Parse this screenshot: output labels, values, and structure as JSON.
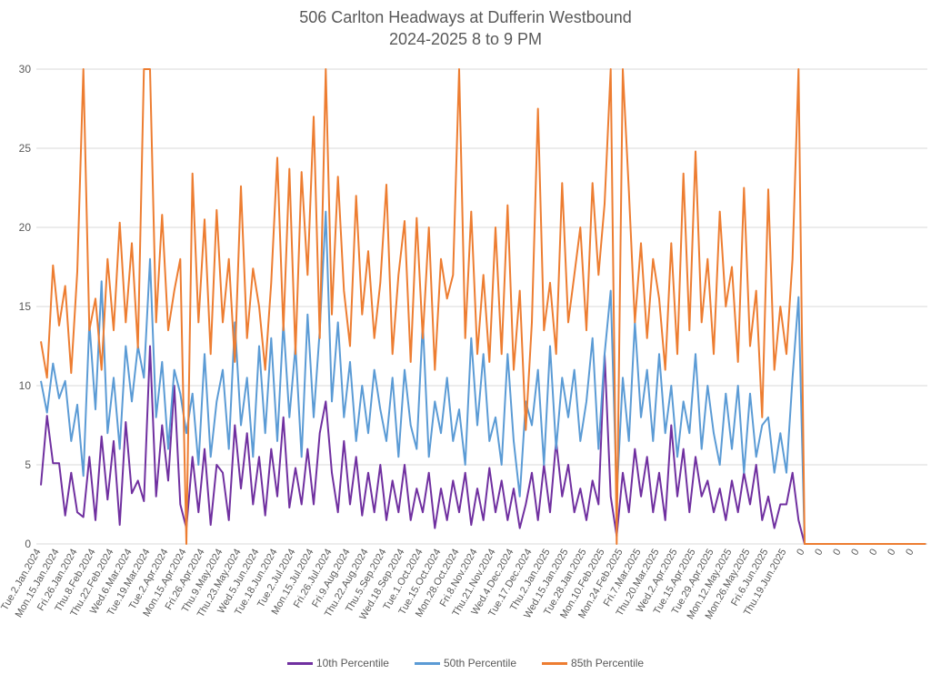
{
  "chart_data": {
    "type": "line",
    "title": "506 Carlton Headways at Dufferin Westbound",
    "subtitle": "2024-2025 8 to 9 PM",
    "xlabel": "",
    "ylabel": "",
    "ylim": [
      0,
      30
    ],
    "yticks": [
      0,
      5,
      10,
      15,
      20,
      25,
      30
    ],
    "grid": true,
    "legend_position": "bottom",
    "x_tick_labels": [
      "Tue.2.Jan.2024",
      "Mon.15.Jan.2024",
      "Fri.26.Jan.2024",
      "Thu.8.Feb.2024",
      "Thu.22.Feb.2024",
      "Wed.6.Mar.2024",
      "Tue.19.Mar.2024",
      "Tue.2.Apr.2024",
      "Mon.15.Apr.2024",
      "Fri.26.Apr.2024",
      "Thu.9.May.2024",
      "Thu.23.May.2024",
      "Wed.5.Jun.2024",
      "Tue.18.Jun.2024",
      "Tue.2.Jul.2024",
      "Mon.15.Jul.2024",
      "Fri.26.Jul.2024",
      "Fri.9.Aug.2024",
      "Thu.22.Aug.2024",
      "Thu.5.Sep.2024",
      "Wed.18.Sep.2024",
      "Tue.1.Oct.2024",
      "Tue.15.Oct.2024",
      "Mon.28.Oct.2024",
      "Fri.8.Nov.2024",
      "Thu.21.Nov.2024",
      "Wed.4.Dec.2024",
      "Tue.17.Dec.2024",
      "Thu.2.Jan.2025",
      "Wed.15.Jan.2025",
      "Tue.28.Jan.2025",
      "Mon.10.Feb.2025",
      "Mon.24.Feb.2025",
      "Fri.7.Mar.2025",
      "Thu.20.Mar.2025",
      "Wed.2.Apr.2025",
      "Tue.15.Apr.2025",
      "Tue.29.Apr.2025",
      "Mon.12.May.2025",
      "Mon.26.May.2025",
      "Fri.6.Jun.2025",
      "Thu.19.Jun.2025",
      "0",
      "0",
      "0",
      "0",
      "0",
      "0",
      "0"
    ],
    "points_per_tick": 3,
    "series": [
      {
        "name": "10th Percentile",
        "color": "#7030A0",
        "values": [
          3.7,
          8.1,
          5.1,
          5.1,
          1.8,
          4.5,
          2.0,
          1.7,
          5.5,
          1.5,
          6.8,
          2.8,
          6.5,
          1.2,
          7.7,
          3.2,
          4.0,
          2.7,
          12.5,
          3.0,
          7.5,
          4.0,
          10.0,
          2.5,
          1.0,
          5.5,
          2.0,
          6.0,
          1.2,
          5.0,
          4.5,
          1.5,
          7.5,
          3.5,
          7.0,
          2.5,
          5.5,
          1.8,
          6.0,
          3.0,
          8.0,
          2.3,
          4.8,
          2.5,
          6.0,
          2.5,
          7.0,
          9.0,
          4.5,
          2.0,
          6.5,
          2.5,
          5.5,
          1.8,
          4.5,
          2.0,
          5.0,
          1.5,
          4.0,
          2.0,
          5.0,
          1.5,
          3.5,
          2.0,
          4.5,
          1.0,
          3.5,
          1.5,
          4.0,
          2.0,
          4.5,
          1.2,
          3.5,
          1.5,
          4.8,
          2.0,
          4.0,
          1.5,
          3.5,
          1.0,
          2.5,
          4.5,
          1.5,
          5.0,
          2.0,
          6.5,
          3.0,
          5.0,
          2.0,
          3.5,
          1.5,
          4.0,
          2.5,
          12.0,
          3.0,
          0.5,
          4.5,
          2.0,
          6.0,
          3.0,
          5.5,
          2.0,
          4.5,
          1.5,
          7.5,
          3.0,
          6.0,
          2.0,
          5.5,
          3.0,
          4.0,
          2.0,
          3.5,
          1.5,
          4.0,
          2.0,
          4.5,
          2.5,
          5.0,
          1.5,
          3.0,
          1.0,
          2.5,
          2.5,
          4.5,
          1.5,
          0,
          0,
          0,
          0,
          0,
          0,
          0,
          0,
          0,
          0,
          0,
          0,
          0,
          0,
          0,
          0,
          0,
          0,
          0,
          0,
          0
        ]
      },
      {
        "name": "50th Percentile",
        "color": "#5B9BD5",
        "values": [
          10.3,
          8.3,
          11.4,
          9.2,
          10.3,
          6.5,
          8.8,
          4.3,
          14.0,
          8.5,
          16.6,
          7.0,
          10.5,
          6.0,
          12.5,
          9.0,
          12.5,
          10.5,
          18.0,
          8.0,
          11.5,
          6.0,
          11.0,
          9.5,
          7.0,
          9.5,
          5.0,
          12.0,
          5.5,
          9.0,
          11.0,
          6.0,
          14.0,
          7.5,
          10.5,
          5.5,
          12.5,
          7.0,
          13.0,
          6.5,
          14.0,
          8.0,
          12.5,
          5.5,
          14.5,
          8.0,
          13.5,
          21.0,
          9.0,
          14.0,
          8.0,
          11.5,
          6.5,
          10.0,
          7.0,
          11.0,
          8.5,
          6.5,
          10.5,
          5.5,
          11.0,
          7.5,
          6.0,
          14.0,
          5.5,
          9.0,
          7.0,
          10.5,
          6.5,
          8.5,
          5.0,
          13.0,
          7.5,
          12.0,
          6.5,
          8.0,
          5.0,
          12.0,
          6.5,
          3.0,
          9.0,
          7.5,
          11.0,
          5.0,
          12.5,
          6.0,
          10.5,
          8.0,
          11.0,
          6.5,
          9.0,
          13.0,
          6.0,
          12.0,
          16.0,
          3.0,
          10.5,
          6.5,
          14.0,
          8.0,
          11.0,
          6.5,
          12.0,
          7.0,
          10.0,
          5.5,
          9.0,
          7.0,
          12.0,
          6.0,
          10.0,
          7.0,
          5.0,
          9.5,
          6.0,
          10.0,
          4.5,
          9.5,
          5.5,
          7.5,
          8.0,
          4.5,
          7.0,
          4.5,
          10.5,
          15.6,
          0,
          0,
          0,
          0,
          0,
          0,
          0,
          0,
          0,
          0,
          0,
          0,
          0,
          0,
          0,
          0,
          0,
          0,
          0,
          0,
          0
        ]
      },
      {
        "name": "85th Percentile",
        "color": "#ED7D31",
        "values": [
          12.8,
          10.5,
          17.6,
          13.8,
          16.3,
          10.8,
          17.2,
          30,
          13.5,
          15.5,
          11.0,
          18.0,
          13.5,
          20.3,
          14.0,
          19.0,
          12.4,
          30,
          30,
          14.0,
          20.8,
          13.5,
          16.0,
          18.0,
          0,
          23.4,
          14.0,
          20.5,
          12.0,
          21.1,
          14.0,
          18.0,
          11.5,
          22.6,
          13.0,
          17.4,
          15.0,
          11.0,
          16.5,
          24.4,
          13.5,
          23.7,
          12.0,
          23.5,
          17.0,
          27.0,
          13.0,
          30,
          14.5,
          23.2,
          16.0,
          12.5,
          22.0,
          14.5,
          18.5,
          13.0,
          16.5,
          22.7,
          12.0,
          17.0,
          20.4,
          11.5,
          20.6,
          13.0,
          20.0,
          11.0,
          18.0,
          15.5,
          17.0,
          30,
          13.0,
          21.0,
          12.0,
          17.0,
          11.5,
          20.0,
          12.0,
          21.4,
          11.0,
          16.0,
          7.2,
          14.0,
          27.5,
          13.5,
          16.5,
          12.0,
          22.8,
          14.0,
          17.0,
          20.0,
          13.5,
          22.8,
          17.0,
          21.5,
          30,
          0,
          30,
          22.3,
          14.0,
          19.0,
          13.0,
          18.0,
          15.5,
          11.0,
          19.0,
          12.0,
          23.4,
          13.5,
          24.8,
          14.0,
          18.0,
          12.0,
          21.0,
          15.0,
          17.5,
          11.5,
          22.5,
          12.5,
          16.0,
          8.0,
          22.4,
          11.0,
          15.0,
          12.0,
          18.0,
          30,
          0,
          0,
          0,
          0,
          0,
          0,
          0,
          0,
          0,
          0,
          0,
          0,
          0,
          0,
          0,
          0,
          0,
          0,
          0,
          0,
          0
        ]
      }
    ]
  }
}
